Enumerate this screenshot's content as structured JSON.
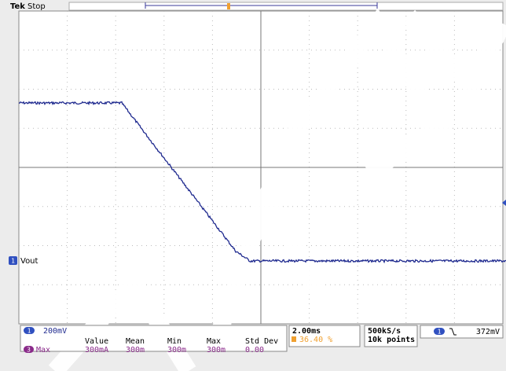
{
  "header": {
    "brand": "Tek",
    "status": "Stop"
  },
  "channel": {
    "number": "1",
    "label": "Vout",
    "scale": "200mV"
  },
  "measurement": {
    "headers": [
      "Value",
      "Mean",
      "Min",
      "Max",
      "Std Dev"
    ],
    "source": "3",
    "name": "Max",
    "values": [
      "300mA",
      "300m",
      "300m",
      "300m",
      "0.00"
    ]
  },
  "timebase": {
    "scale": "2.00ms",
    "trigger_position": "36.40 %"
  },
  "acquisition": {
    "rate": "500kS/s",
    "length": "10k points"
  },
  "trigger": {
    "source": "1",
    "level": "372mV"
  }
}
